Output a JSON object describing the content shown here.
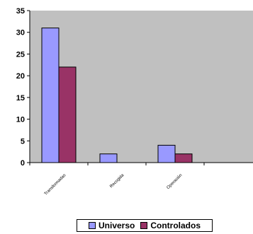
{
  "chart_data": {
    "type": "bar",
    "categories": [
      "Transformadas",
      "Recogida",
      "Operación"
    ],
    "series": [
      {
        "name": "Universo",
        "values": [
          31,
          2,
          4
        ],
        "color": "#9999ff"
      },
      {
        "name": "Controlados",
        "values": [
          22,
          0,
          2
        ],
        "color": "#993366"
      }
    ],
    "ylim": [
      0,
      35
    ],
    "yticks": [
      0,
      5,
      10,
      15,
      20,
      25,
      30,
      35
    ],
    "grid": false,
    "plot_background": "#c0c0c0",
    "legend_position": "bottom"
  }
}
